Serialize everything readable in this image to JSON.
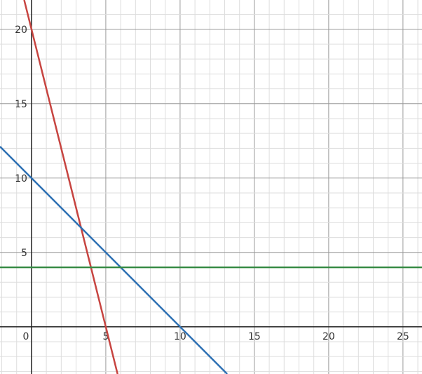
{
  "chart_data": {
    "type": "line",
    "xlim": [
      -2.12,
      26.28
    ],
    "ylim": [
      -3.17,
      21.97
    ],
    "grid": true,
    "minor_grid_step": 1,
    "major_grid_step": 5,
    "x_ticks": [
      "0",
      "5",
      "10",
      "15",
      "20",
      "25"
    ],
    "y_ticks": [
      "5",
      "10",
      "15",
      "20"
    ],
    "series": [
      {
        "equation": "y = 20 - 4x",
        "slope": -4,
        "intercept": 20,
        "color": "#c74440"
      },
      {
        "equation": "y = 10 - x",
        "slope": -1,
        "intercept": 10,
        "color": "#2d70b3"
      },
      {
        "equation": "y = 4",
        "slope": 0,
        "intercept": 4,
        "color": "#388c46"
      }
    ]
  }
}
